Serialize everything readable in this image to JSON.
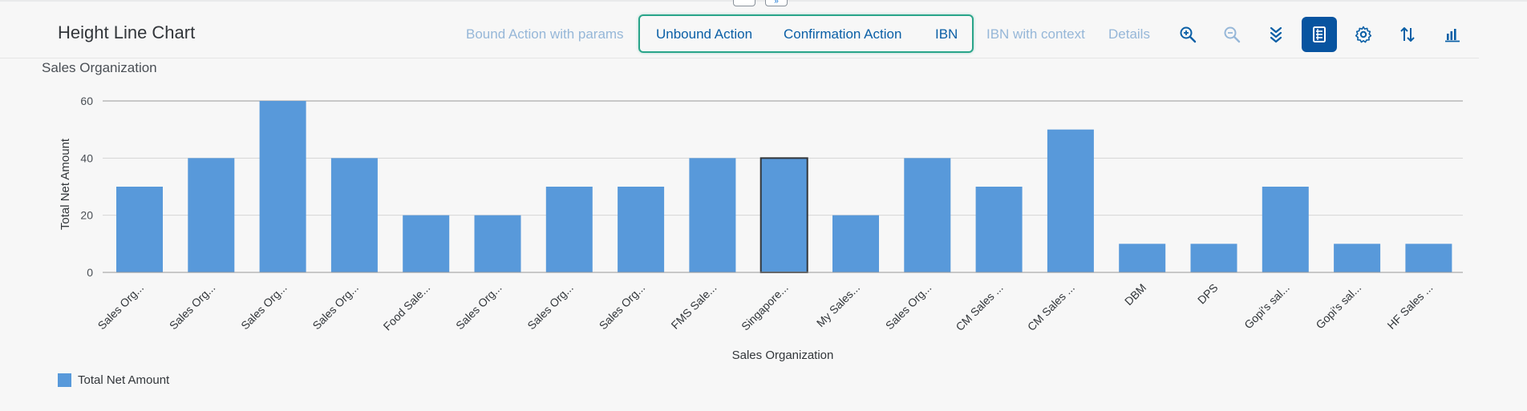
{
  "header": {
    "title": "Height Line Chart",
    "actions": {
      "bound_action": "Bound Action with params",
      "unbound_action": "Unbound Action",
      "confirmation_action": "Confirmation Action",
      "ibn": "IBN",
      "ibn_context": "IBN with context",
      "details": "Details"
    },
    "icons": [
      "zoom-in-icon",
      "zoom-out-icon",
      "drill-down-icon",
      "table-view-icon",
      "settings-icon",
      "sort-icon",
      "chart-type-icon"
    ]
  },
  "colors": {
    "bar": "#5899da",
    "accent": "#0854a0",
    "highlight": "#2aa58a",
    "disabled_text": "#96b7d8"
  },
  "chart_data": {
    "type": "bar",
    "title": "Sales Organization",
    "xlabel": "Sales Organization",
    "ylabel": "Total Net Amount",
    "ylim": [
      0,
      60
    ],
    "yticks": [
      0,
      20,
      40,
      60
    ],
    "grid": true,
    "legend_placement": "bottom-left",
    "selected_index": 9,
    "categories": [
      "Sales Org...",
      "Sales Org...",
      "Sales Org...",
      "Sales Org...",
      "Food Sale...",
      "Sales Org...",
      "Sales Org...",
      "Sales Org...",
      "FMS Sale...",
      "Singapore...",
      "My Sales...",
      "Sales Org...",
      "CM Sales ...",
      "CM Sales ...",
      "DBM",
      "DPS",
      "Gopi's sal...",
      "Gopi's sal...",
      "HF Sales ..."
    ],
    "series": [
      {
        "name": "Total Net Amount",
        "values": [
          30,
          40,
          60,
          40,
          20,
          20,
          30,
          30,
          40,
          40,
          20,
          40,
          30,
          50,
          10,
          10,
          30,
          10,
          10
        ]
      }
    ]
  }
}
